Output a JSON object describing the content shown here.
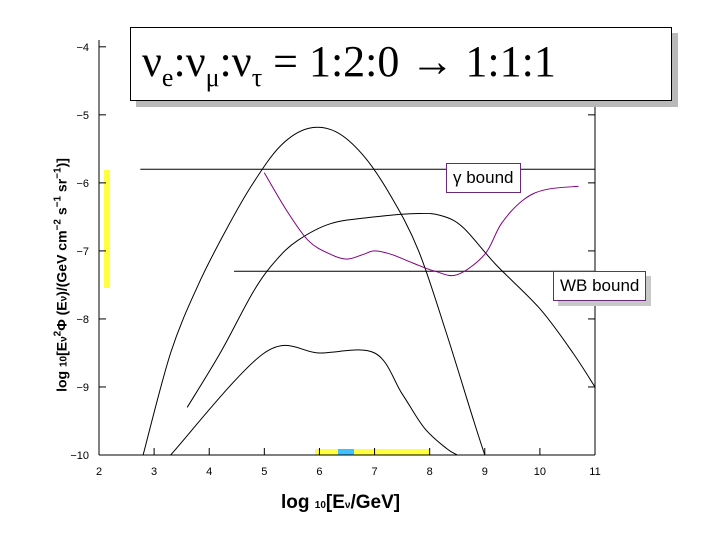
{
  "title": {
    "flavors": [
      "ν",
      "ν",
      "ν"
    ],
    "subs": [
      "e",
      "μ",
      "τ"
    ],
    "ratio": "= 1:2:0 → 1:1:1"
  },
  "annotations": {
    "gamma_bound": "γ bound",
    "wb_bound": "WB bound"
  },
  "axes": {
    "xlabel_parts": [
      "log ",
      "10",
      "[E",
      "ν",
      "/GeV]"
    ],
    "ylabel_parts": [
      "log ",
      "10",
      "[E",
      "ν",
      "2",
      "Φ (E",
      "ν",
      ")/(GeV cm",
      "−2",
      " s",
      "−1",
      " sr",
      "−1",
      ")]"
    ]
  },
  "chart_data": {
    "type": "line",
    "xlim": [
      2,
      11
    ],
    "ylim": [
      -10,
      -3.9
    ],
    "x_ticks": [
      "2",
      "3",
      "4",
      "5",
      "6",
      "7",
      "8",
      "9",
      "10",
      "11"
    ],
    "y_ticks": [
      "−10",
      "−9",
      "−8",
      "−7",
      "−6",
      "−5",
      "−4"
    ],
    "grid": false,
    "series": [
      {
        "color": "#000000",
        "x": [
          2.8,
          3.3,
          3.8,
          4.3,
          4.8,
          5.3,
          5.8,
          6.3,
          6.8,
          7.3,
          7.8,
          8.3,
          8.8,
          9.0
        ],
        "y": [
          -10.0,
          -8.5,
          -7.5,
          -6.7,
          -6.0,
          -5.45,
          -5.2,
          -5.25,
          -5.6,
          -6.2,
          -7.0,
          -8.2,
          -9.5,
          -10.0
        ]
      },
      {
        "color": "#000000",
        "x": [
          3.6,
          4.2,
          4.8,
          5.2,
          5.6,
          6.2,
          7.0,
          7.8,
          8.2,
          8.6,
          9.2,
          10.0,
          10.6,
          11.0
        ],
        "y": [
          -9.3,
          -8.5,
          -7.6,
          -7.15,
          -6.85,
          -6.6,
          -6.5,
          -6.45,
          -6.48,
          -6.65,
          -7.2,
          -7.85,
          -8.5,
          -9.0
        ]
      },
      {
        "color": "#000000",
        "x": [
          3.3,
          5.0,
          6.0,
          7.0,
          7.5,
          7.9,
          8.3,
          8.5
        ],
        "y": [
          -10.0,
          -8.5,
          -8.5,
          -8.5,
          -9.1,
          -9.6,
          -9.9,
          -10.0
        ]
      },
      {
        "color": "#800080",
        "x": [
          5.0,
          5.4,
          5.8,
          6.2,
          6.5,
          6.8,
          7.0,
          7.3,
          7.7,
          8.1,
          8.5,
          9.0,
          9.3,
          9.7,
          10.1,
          10.7
        ],
        "y": [
          -5.85,
          -6.4,
          -6.85,
          -7.05,
          -7.12,
          -7.05,
          -7.0,
          -7.05,
          -7.18,
          -7.3,
          -7.35,
          -7.05,
          -6.6,
          -6.25,
          -6.1,
          -6.05
        ]
      }
    ],
    "bounds": [
      {
        "name": "γ bound",
        "x": [
          2.75,
          11.0
        ],
        "y": -5.8
      },
      {
        "name": "WB bound",
        "x": [
          4.45,
          11.0
        ],
        "y": -7.3
      }
    ]
  }
}
